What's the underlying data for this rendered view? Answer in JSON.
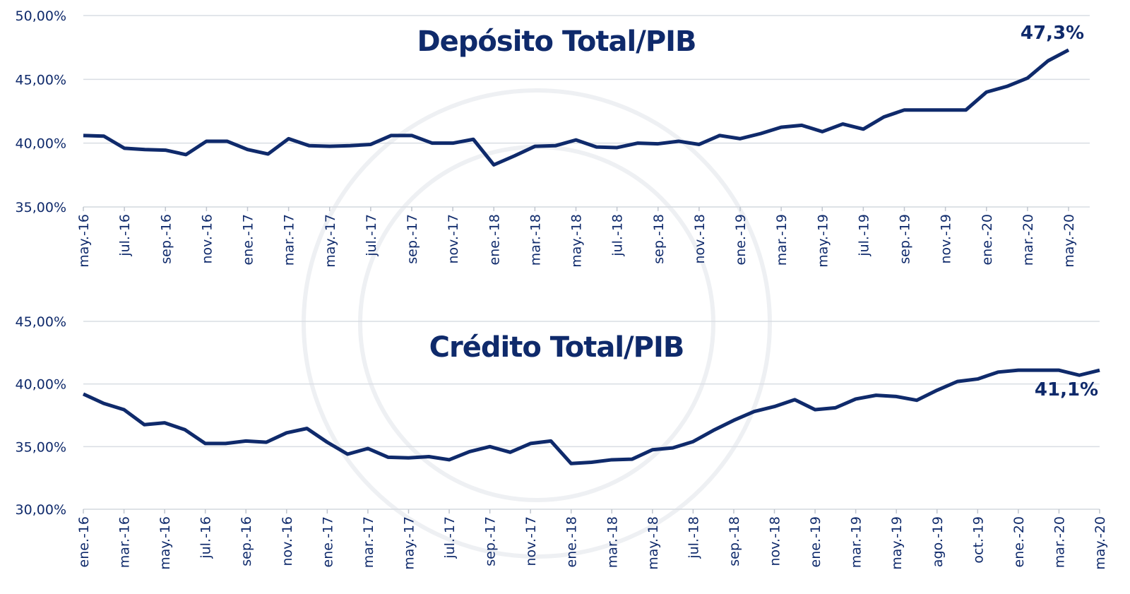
{
  "chart_data": [
    {
      "type": "line",
      "title": "Depósito Total/PIB",
      "categories": [
        "may.-16",
        null,
        "jul.-16",
        null,
        "sep.-16",
        null,
        "nov.-16",
        null,
        "ene.-17",
        null,
        "mar.-17",
        null,
        "may.-17",
        null,
        "jul.-17",
        null,
        "sep.-17",
        null,
        "nov.-17",
        null,
        "ene.-18",
        null,
        "mar.-18",
        null,
        "may.-18",
        null,
        "jul.-18",
        null,
        "sep.-18",
        null,
        "nov.-18",
        null,
        "ene.-19",
        null,
        "mar.-19",
        null,
        "may.-19",
        null,
        "jul.-19",
        null,
        "sep.-19",
        null,
        "nov.-19",
        null,
        "ene.-20",
        null,
        "mar.-20",
        null,
        "may.-20"
      ],
      "series": [
        {
          "color": "#0f2a6b",
          "values": [
            40.6,
            40.55,
            39.6,
            39.5,
            39.45,
            39.1,
            40.15,
            40.15,
            39.5,
            39.15,
            40.35,
            39.8,
            39.75,
            39.8,
            39.9,
            40.6,
            40.6,
            40.0,
            40.0,
            40.3,
            38.3,
            39.0,
            39.75,
            39.8,
            40.25,
            39.7,
            39.65,
            40.0,
            39.95,
            40.15,
            39.9,
            40.6,
            40.35,
            40.75,
            41.25,
            41.4,
            40.9,
            41.5,
            41.1,
            42.05,
            42.6,
            42.6,
            42.6,
            42.6,
            44.0,
            44.45,
            45.1,
            46.45,
            47.3
          ]
        }
      ],
      "ylim": [
        35,
        50
      ],
      "yticks": [
        {
          "value": 35,
          "label": "35,00%"
        },
        {
          "value": 40,
          "label": "40,00%"
        },
        {
          "value": 45,
          "label": "45,00%"
        },
        {
          "value": 50,
          "label": "50,00%"
        }
      ],
      "grid": true,
      "annotation": "47,3%"
    },
    {
      "type": "line",
      "title": "Crédito Total/PIB",
      "categories": [
        "ene.-16",
        null,
        "mar.-16",
        null,
        "may.-16",
        null,
        "jul.-16",
        null,
        "sep.-16",
        null,
        "nov.-16",
        null,
        "ene.-17",
        null,
        "mar.-17",
        null,
        "may.-17",
        null,
        "jul.-17",
        null,
        "sep.-17",
        null,
        "nov.-17",
        null,
        "ene.-18",
        null,
        "mar.-18",
        null,
        "may.-18",
        null,
        "jul.-18",
        null,
        "sep.-18",
        null,
        "nov.-18",
        null,
        "ene.-19",
        null,
        "mar.-19",
        null,
        "may.-19",
        null,
        "ago.-19",
        null,
        "oct.-19",
        null,
        "ene.-20",
        null,
        "mar.-20",
        null,
        "may.-20"
      ],
      "series": [
        {
          "color": "#0f2a6b",
          "values": [
            39.2,
            38.45,
            37.95,
            36.75,
            36.9,
            36.35,
            35.25,
            35.25,
            35.45,
            35.35,
            36.1,
            36.45,
            35.35,
            34.4,
            34.85,
            34.15,
            34.1,
            34.2,
            33.95,
            34.6,
            35.0,
            34.55,
            35.25,
            35.45,
            33.65,
            33.75,
            33.95,
            34.0,
            34.75,
            34.9,
            35.4,
            36.3,
            37.1,
            37.8,
            38.2,
            38.75,
            37.95,
            38.1,
            38.8,
            39.1,
            39.0,
            38.7,
            39.5,
            40.2,
            40.4,
            40.95,
            41.1,
            41.1,
            41.1,
            40.7,
            41.1
          ]
        }
      ],
      "ylim": [
        30,
        45
      ],
      "yticks": [
        {
          "value": 30,
          "label": "30,00%"
        },
        {
          "value": 35,
          "label": "35,00%"
        },
        {
          "value": 40,
          "label": "40,00%"
        },
        {
          "value": 45,
          "label": "45,00%"
        }
      ],
      "grid": true,
      "annotation": "41,1%"
    }
  ]
}
